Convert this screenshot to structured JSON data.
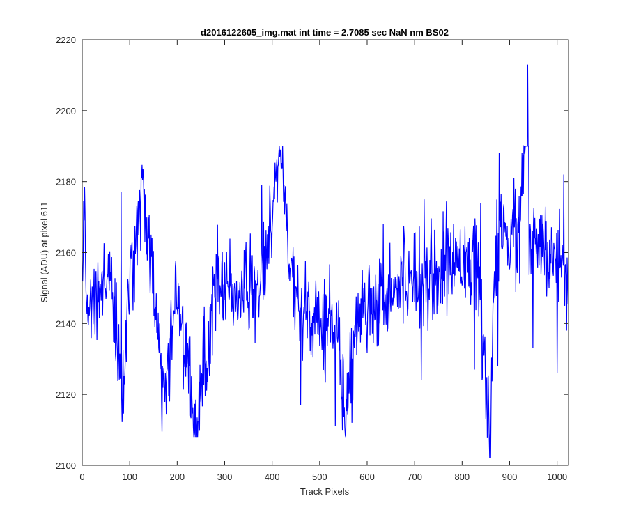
{
  "chart_data": {
    "type": "line",
    "title": "d2016122605_img.mat int time = 2.7085 sec  NaN nm BS02",
    "xlabel": "Track Pixels",
    "ylabel": "Signal (ADU) at pixel 611",
    "xlim": [
      0,
      1024
    ],
    "ylim": [
      2100,
      2220
    ],
    "xticks": [
      0,
      100,
      200,
      300,
      400,
      500,
      600,
      700,
      800,
      900,
      1000
    ],
    "yticks": [
      2100,
      2120,
      2140,
      2160,
      2180,
      2200,
      2220
    ],
    "grid": false,
    "legend": "none",
    "line_color": "#0000ff",
    "x_start": 1,
    "x_step": 1,
    "anchors": [
      [
        1,
        2152
      ],
      [
        3,
        2172
      ],
      [
        12,
        2140
      ],
      [
        30,
        2150
      ],
      [
        60,
        2152
      ],
      [
        86,
        2118
      ],
      [
        100,
        2150
      ],
      [
        127,
        2181
      ],
      [
        150,
        2150
      ],
      [
        173,
        2120
      ],
      [
        200,
        2150
      ],
      [
        240,
        2109
      ],
      [
        280,
        2149
      ],
      [
        320,
        2149
      ],
      [
        380,
        2151
      ],
      [
        416,
        2187
      ],
      [
        450,
        2146
      ],
      [
        500,
        2143
      ],
      [
        540,
        2140
      ],
      [
        552,
        2111
      ],
      [
        580,
        2143
      ],
      [
        600,
        2146
      ],
      [
        650,
        2150
      ],
      [
        700,
        2154
      ],
      [
        750,
        2154
      ],
      [
        800,
        2160
      ],
      [
        830,
        2158
      ],
      [
        860,
        2102
      ],
      [
        861,
        2135
      ],
      [
        880,
        2166
      ],
      [
        920,
        2163
      ],
      [
        940,
        2213
      ],
      [
        941,
        2160
      ],
      [
        960,
        2162
      ],
      [
        1000,
        2157
      ],
      [
        1024,
        2158
      ]
    ],
    "noise_amplitude": 9,
    "spikes": [
      [
        82,
        2177
      ],
      [
        125,
        2181
      ],
      [
        173,
        2120
      ],
      [
        184,
        2118
      ],
      [
        236,
        2109
      ],
      [
        378,
        2179
      ],
      [
        416,
        2187
      ],
      [
        460,
        2117
      ],
      [
        533,
        2111
      ],
      [
        548,
        2110
      ],
      [
        568,
        2112
      ],
      [
        714,
        2124
      ],
      [
        720,
        2175
      ],
      [
        826,
        2127
      ],
      [
        839,
        2174
      ],
      [
        858,
        2102
      ],
      [
        860,
        2102
      ],
      [
        875,
        2128
      ],
      [
        878,
        2188
      ],
      [
        912,
        2178
      ],
      [
        938,
        2213
      ],
      [
        949,
        2133
      ],
      [
        1000,
        2126
      ],
      [
        1014,
        2182
      ],
      [
        1020,
        2138
      ]
    ],
    "seed": 611
  }
}
